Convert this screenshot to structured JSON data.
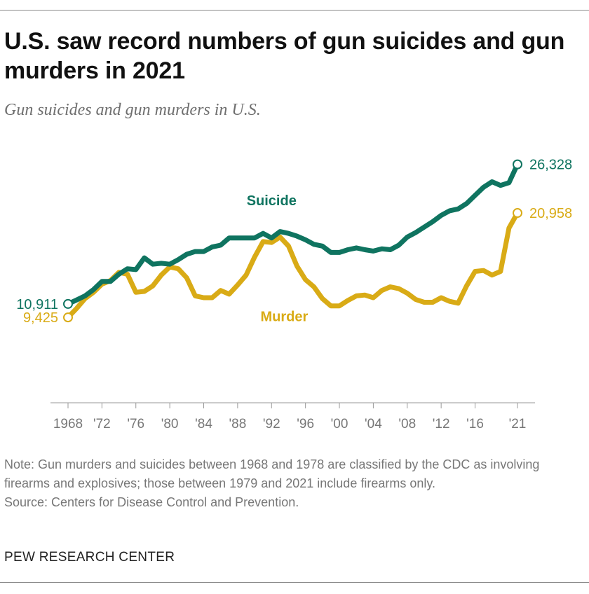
{
  "header": {
    "title": "U.S. saw record numbers of gun suicides and gun murders in 2021",
    "subtitle": "Gun suicides and gun murders in U.S."
  },
  "footer": {
    "note": "Note: Gun murders and suicides between 1968 and 1978 are classified by the CDC as involving firearms and explosives; those between 1979 and 2021 include firearms only.",
    "source": "Source: Centers for Disease Control and Prevention.",
    "brand": "PEW RESEARCH CENTER"
  },
  "colors": {
    "suicide": "#0f7460",
    "murder": "#d9ab16",
    "axis": "#999999",
    "tick_text": "#777777"
  },
  "chart_data": {
    "type": "line",
    "title": "U.S. saw record numbers of gun suicides and gun murders in 2021",
    "subtitle": "Gun suicides and gun murders in U.S.",
    "xlabel": "",
    "ylabel": "",
    "xlim": [
      1968,
      2021
    ],
    "ylim": [
      0,
      28000
    ],
    "grid": false,
    "legend": "inline labels",
    "tick_labels": [
      "1968",
      "'72",
      "'76",
      "'80",
      "'84",
      "'88",
      "'92",
      "'96",
      "'00",
      "'04",
      "'08",
      "'12",
      "'16",
      "'21"
    ],
    "tick_years": [
      1968,
      1972,
      1976,
      1980,
      1984,
      1988,
      1992,
      1996,
      2000,
      2004,
      2008,
      2012,
      2016,
      2021
    ],
    "x": [
      1968,
      1969,
      1970,
      1971,
      1972,
      1973,
      1974,
      1975,
      1976,
      1977,
      1978,
      1979,
      1980,
      1981,
      1982,
      1983,
      1984,
      1985,
      1986,
      1987,
      1988,
      1989,
      1990,
      1991,
      1992,
      1993,
      1994,
      1995,
      1996,
      1997,
      1998,
      1999,
      2000,
      2001,
      2002,
      2003,
      2004,
      2005,
      2006,
      2007,
      2008,
      2009,
      2010,
      2011,
      2012,
      2013,
      2014,
      2015,
      2016,
      2017,
      2018,
      2019,
      2020,
      2021
    ],
    "series": [
      {
        "name": "Suicide",
        "color_key": "suicide",
        "end_label": "26,328",
        "start_label": "10,911",
        "values": [
          10911,
          11350,
          11800,
          12500,
          13400,
          13400,
          14200,
          14800,
          14700,
          16000,
          15300,
          15400,
          15300,
          15800,
          16400,
          16700,
          16700,
          17200,
          17400,
          18200,
          18200,
          18200,
          18200,
          18700,
          18200,
          18900,
          18700,
          18400,
          18000,
          17500,
          17300,
          16600,
          16600,
          16900,
          17100,
          16900,
          16750,
          17000,
          16900,
          17400,
          18300,
          18800,
          19400,
          20000,
          20700,
          21200,
          21400,
          22000,
          22900,
          23800,
          24400,
          24000,
          24300,
          26328
        ]
      },
      {
        "name": "Murder",
        "color_key": "murder",
        "end_label": "20,958",
        "start_label": "9,425",
        "values": [
          9425,
          10400,
          11500,
          12200,
          13100,
          13500,
          14400,
          14200,
          12200,
          12300,
          12900,
          14100,
          15000,
          14800,
          13800,
          11800,
          11600,
          11600,
          12400,
          12000,
          13000,
          14100,
          16100,
          17800,
          17700,
          18300,
          17300,
          15100,
          13600,
          12800,
          11500,
          10700,
          10700,
          11300,
          11800,
          11900,
          11600,
          12400,
          12800,
          12600,
          12100,
          11400,
          11100,
          11100,
          11600,
          11200,
          11000,
          12900,
          14500,
          14600,
          14100,
          14500,
          19300,
          20958
        ]
      }
    ],
    "annotations": [
      {
        "text": "Suicide",
        "series": "Suicide",
        "x": 1992,
        "y": 21800
      },
      {
        "text": "Murder",
        "series": "Murder",
        "x": 1993.5,
        "y": 9000
      }
    ]
  }
}
